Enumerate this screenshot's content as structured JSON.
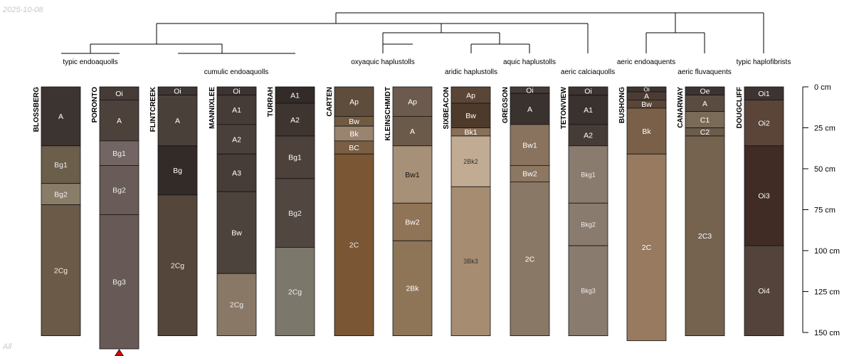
{
  "header": {
    "date": "2025-10-08",
    "subset_label": "All"
  },
  "depth_axis": {
    "unit": "cm",
    "max_depth": 150,
    "ticks": [
      {
        "depth": 0,
        "label": "0 cm"
      },
      {
        "depth": 25,
        "label": "25 cm"
      },
      {
        "depth": 50,
        "label": "50 cm"
      },
      {
        "depth": 75,
        "label": "75 cm"
      },
      {
        "depth": 100,
        "label": "100 cm"
      },
      {
        "depth": 125,
        "label": "125 cm"
      },
      {
        "depth": 150,
        "label": "150 cm"
      }
    ]
  },
  "taxa": [
    "typic endoaquolls",
    "cumulic endoaquolls",
    "oxyaquic haplustolls",
    "aridic haplustolls",
    "aquic haplustolls",
    "aeric calciaquolls",
    "aeric endoaquents",
    "aeric fluvaquents",
    "typic haplofibrists"
  ],
  "profiles": [
    {
      "name": "BLOSSBERG",
      "truncated": false,
      "horizons": [
        {
          "name": "A",
          "top": 0,
          "bottom": 36,
          "color": "#3c3430",
          "text": "#ffffff"
        },
        {
          "name": "Bg1",
          "top": 36,
          "bottom": 59,
          "color": "#6b5e4b",
          "text": "#eeeeee"
        },
        {
          "name": "Bg2",
          "top": 59,
          "bottom": 72,
          "color": "#8a7d68",
          "text": "#eeeeee"
        },
        {
          "name": "2Cg",
          "top": 72,
          "bottom": 152,
          "color": "#6b5a47",
          "text": "#eeeeee"
        }
      ]
    },
    {
      "name": "PORONTO",
      "truncated": true,
      "horizons": [
        {
          "name": "Oi",
          "top": 0,
          "bottom": 8,
          "color": "#443a36",
          "text": "#ffffff"
        },
        {
          "name": "A",
          "top": 8,
          "bottom": 33,
          "color": "#4c413b",
          "text": "#ffffff"
        },
        {
          "name": "Bg1",
          "top": 33,
          "bottom": 48,
          "color": "#736564",
          "text": "#eeeeee"
        },
        {
          "name": "Bg2",
          "top": 48,
          "bottom": 78,
          "color": "#685b58",
          "text": "#eeeeee"
        },
        {
          "name": "Bg3",
          "top": 78,
          "bottom": 160,
          "color": "#675a56",
          "text": "#eeeeee"
        }
      ]
    },
    {
      "name": "FLINTCREEK",
      "truncated": false,
      "horizons": [
        {
          "name": "Oi",
          "top": 0,
          "bottom": 5,
          "color": "#3e3632",
          "text": "#ffffff"
        },
        {
          "name": "A",
          "top": 5,
          "bottom": 36,
          "color": "#4a403a",
          "text": "#ffffff"
        },
        {
          "name": "Bg",
          "top": 36,
          "bottom": 66,
          "color": "#332b28",
          "text": "#ffffff"
        },
        {
          "name": "2Cg",
          "top": 66,
          "bottom": 152,
          "color": "#54463a",
          "text": "#eeeeee"
        }
      ]
    },
    {
      "name": "MANNIXLEE",
      "truncated": false,
      "horizons": [
        {
          "name": "Oi",
          "top": 0,
          "bottom": 5,
          "color": "#3c3430",
          "text": "#ffffff"
        },
        {
          "name": "A1",
          "top": 5,
          "bottom": 23,
          "color": "#463c37",
          "text": "#ffffff"
        },
        {
          "name": "A2",
          "top": 23,
          "bottom": 41,
          "color": "#4a403b",
          "text": "#ffffff"
        },
        {
          "name": "A3",
          "top": 41,
          "bottom": 64,
          "color": "#473d38",
          "text": "#ffffff"
        },
        {
          "name": "Bw",
          "top": 64,
          "bottom": 114,
          "color": "#4d433d",
          "text": "#ffffff"
        },
        {
          "name": "2Cg",
          "top": 114,
          "bottom": 152,
          "color": "#8a7866",
          "text": "#eeeeee"
        }
      ]
    },
    {
      "name": "TURRAH",
      "truncated": false,
      "horizons": [
        {
          "name": "A1",
          "top": 0,
          "bottom": 10,
          "color": "#332b28",
          "text": "#ffffff"
        },
        {
          "name": "A2",
          "top": 10,
          "bottom": 30,
          "color": "#3e3531",
          "text": "#ffffff"
        },
        {
          "name": "Bg1",
          "top": 30,
          "bottom": 56,
          "color": "#4c413b",
          "text": "#ffffff"
        },
        {
          "name": "Bg2",
          "top": 56,
          "bottom": 98,
          "color": "#514640",
          "text": "#eeeeee"
        },
        {
          "name": "2Cg",
          "top": 98,
          "bottom": 152,
          "color": "#7b786b",
          "text": "#eeeeee"
        }
      ]
    },
    {
      "name": "CARTEN",
      "truncated": false,
      "horizons": [
        {
          "name": "Ap",
          "top": 0,
          "bottom": 18,
          "color": "#5e4c3c",
          "text": "#ffffff"
        },
        {
          "name": "Bw",
          "top": 18,
          "bottom": 24,
          "color": "#725a42",
          "text": "#ffffff"
        },
        {
          "name": "Bk",
          "top": 24,
          "bottom": 33,
          "color": "#9a8470",
          "text": "#ffffff"
        },
        {
          "name": "BC",
          "top": 33,
          "bottom": 41,
          "color": "#7a5f45",
          "text": "#ffffff"
        },
        {
          "name": "2C",
          "top": 41,
          "bottom": 152,
          "color": "#7a5634",
          "text": "#eeeeee"
        }
      ]
    },
    {
      "name": "KLEINSCHMIDT",
      "truncated": false,
      "horizons": [
        {
          "name": "Ap",
          "top": 0,
          "bottom": 18,
          "color": "#6b5a4d",
          "text": "#ffffff"
        },
        {
          "name": "A",
          "top": 18,
          "bottom": 36,
          "color": "#6b5a4a",
          "text": "#ffffff"
        },
        {
          "name": "Bw1",
          "top": 36,
          "bottom": 71,
          "color": "#a79078",
          "text": "#111111"
        },
        {
          "name": "Bw2",
          "top": 71,
          "bottom": 94,
          "color": "#8f7457",
          "text": "#ffffff"
        },
        {
          "name": "2Bk",
          "top": 94,
          "bottom": 152,
          "color": "#8e7558",
          "text": "#ffffff"
        }
      ]
    },
    {
      "name": "SIXBEACON",
      "truncated": false,
      "horizons": [
        {
          "name": "Ap",
          "top": 0,
          "bottom": 10,
          "color": "#5a4536",
          "text": "#ffffff"
        },
        {
          "name": "Bw",
          "top": 10,
          "bottom": 25,
          "color": "#4e3a2a",
          "text": "#ffffff"
        },
        {
          "name": "Bk1",
          "top": 25,
          "bottom": 30,
          "color": "#8a6f58",
          "text": "#ffffff"
        },
        {
          "name": "2Bk2",
          "top": 30,
          "bottom": 61,
          "color": "#c1ab93",
          "text": "#333333"
        },
        {
          "name": "3Bk3",
          "top": 61,
          "bottom": 152,
          "color": "#a68d72",
          "text": "#333333"
        }
      ]
    },
    {
      "name": "GREGSON",
      "truncated": false,
      "horizons": [
        {
          "name": "Oi",
          "top": 0,
          "bottom": 4,
          "color": "#443a36",
          "text": "#ffffff"
        },
        {
          "name": "A",
          "top": 4,
          "bottom": 23,
          "color": "#3a322e",
          "text": "#ffffff"
        },
        {
          "name": "Bw1",
          "top": 23,
          "bottom": 48,
          "color": "#8a735e",
          "text": "#ffffff"
        },
        {
          "name": "Bw2",
          "top": 48,
          "bottom": 58,
          "color": "#8c7762",
          "text": "#ffffff"
        },
        {
          "name": "2C",
          "top": 58,
          "bottom": 152,
          "color": "#8a7866",
          "text": "#ffffff"
        }
      ]
    },
    {
      "name": "TETONVIEW",
      "truncated": false,
      "horizons": [
        {
          "name": "Oi",
          "top": 0,
          "bottom": 5,
          "color": "#3c3430",
          "text": "#ffffff"
        },
        {
          "name": "A1",
          "top": 5,
          "bottom": 23,
          "color": "#3a322e",
          "text": "#ffffff"
        },
        {
          "name": "A2",
          "top": 23,
          "bottom": 36,
          "color": "#463c37",
          "text": "#ffffff"
        },
        {
          "name": "Bkg1",
          "top": 36,
          "bottom": 71,
          "color": "#8a7b6f",
          "text": "#eeeeee"
        },
        {
          "name": "Bkg2",
          "top": 71,
          "bottom": 97,
          "color": "#8a7b6f",
          "text": "#eeeeee"
        },
        {
          "name": "Bkg3",
          "top": 97,
          "bottom": 152,
          "color": "#8a7b6f",
          "text": "#eeeeee"
        }
      ]
    },
    {
      "name": "BUSHONG",
      "truncated": false,
      "horizons": [
        {
          "name": "Oi",
          "top": 0,
          "bottom": 3,
          "color": "#3c3430",
          "text": "#ffffff"
        },
        {
          "name": "A",
          "top": 3,
          "bottom": 8,
          "color": "#4a3c34",
          "text": "#ffffff"
        },
        {
          "name": "Bw",
          "top": 8,
          "bottom": 13,
          "color": "#5a4536",
          "text": "#ffffff"
        },
        {
          "name": "Bk",
          "top": 13,
          "bottom": 41,
          "color": "#7a6048",
          "text": "#ffffff"
        },
        {
          "name": "2C",
          "top": 41,
          "bottom": 155,
          "color": "#977a5f",
          "text": "#ffffff"
        }
      ]
    },
    {
      "name": "CANARWAY",
      "truncated": false,
      "horizons": [
        {
          "name": "Oe",
          "top": 0,
          "bottom": 5,
          "color": "#3c3430",
          "text": "#ffffff"
        },
        {
          "name": "A",
          "top": 5,
          "bottom": 15,
          "color": "#5a4c40",
          "text": "#ffffff"
        },
        {
          "name": "C1",
          "top": 15,
          "bottom": 25,
          "color": "#7a6a58",
          "text": "#ffffff"
        },
        {
          "name": "C2",
          "top": 25,
          "bottom": 30,
          "color": "#6b5c4c",
          "text": "#ffffff"
        },
        {
          "name": "2C3",
          "top": 30,
          "bottom": 152,
          "color": "#756350",
          "text": "#ffffff"
        }
      ]
    },
    {
      "name": "DOUGCLIFF",
      "truncated": false,
      "horizons": [
        {
          "name": "Oi1",
          "top": 0,
          "bottom": 8,
          "color": "#3c3430",
          "text": "#ffffff"
        },
        {
          "name": "Oi2",
          "top": 8,
          "bottom": 36,
          "color": "#5a4538",
          "text": "#ffffff"
        },
        {
          "name": "Oi3",
          "top": 36,
          "bottom": 97,
          "color": "#402c24",
          "text": "#ffffff"
        },
        {
          "name": "Oi4",
          "top": 97,
          "bottom": 152,
          "color": "#54433a",
          "text": "#ffffff"
        }
      ]
    }
  ]
}
